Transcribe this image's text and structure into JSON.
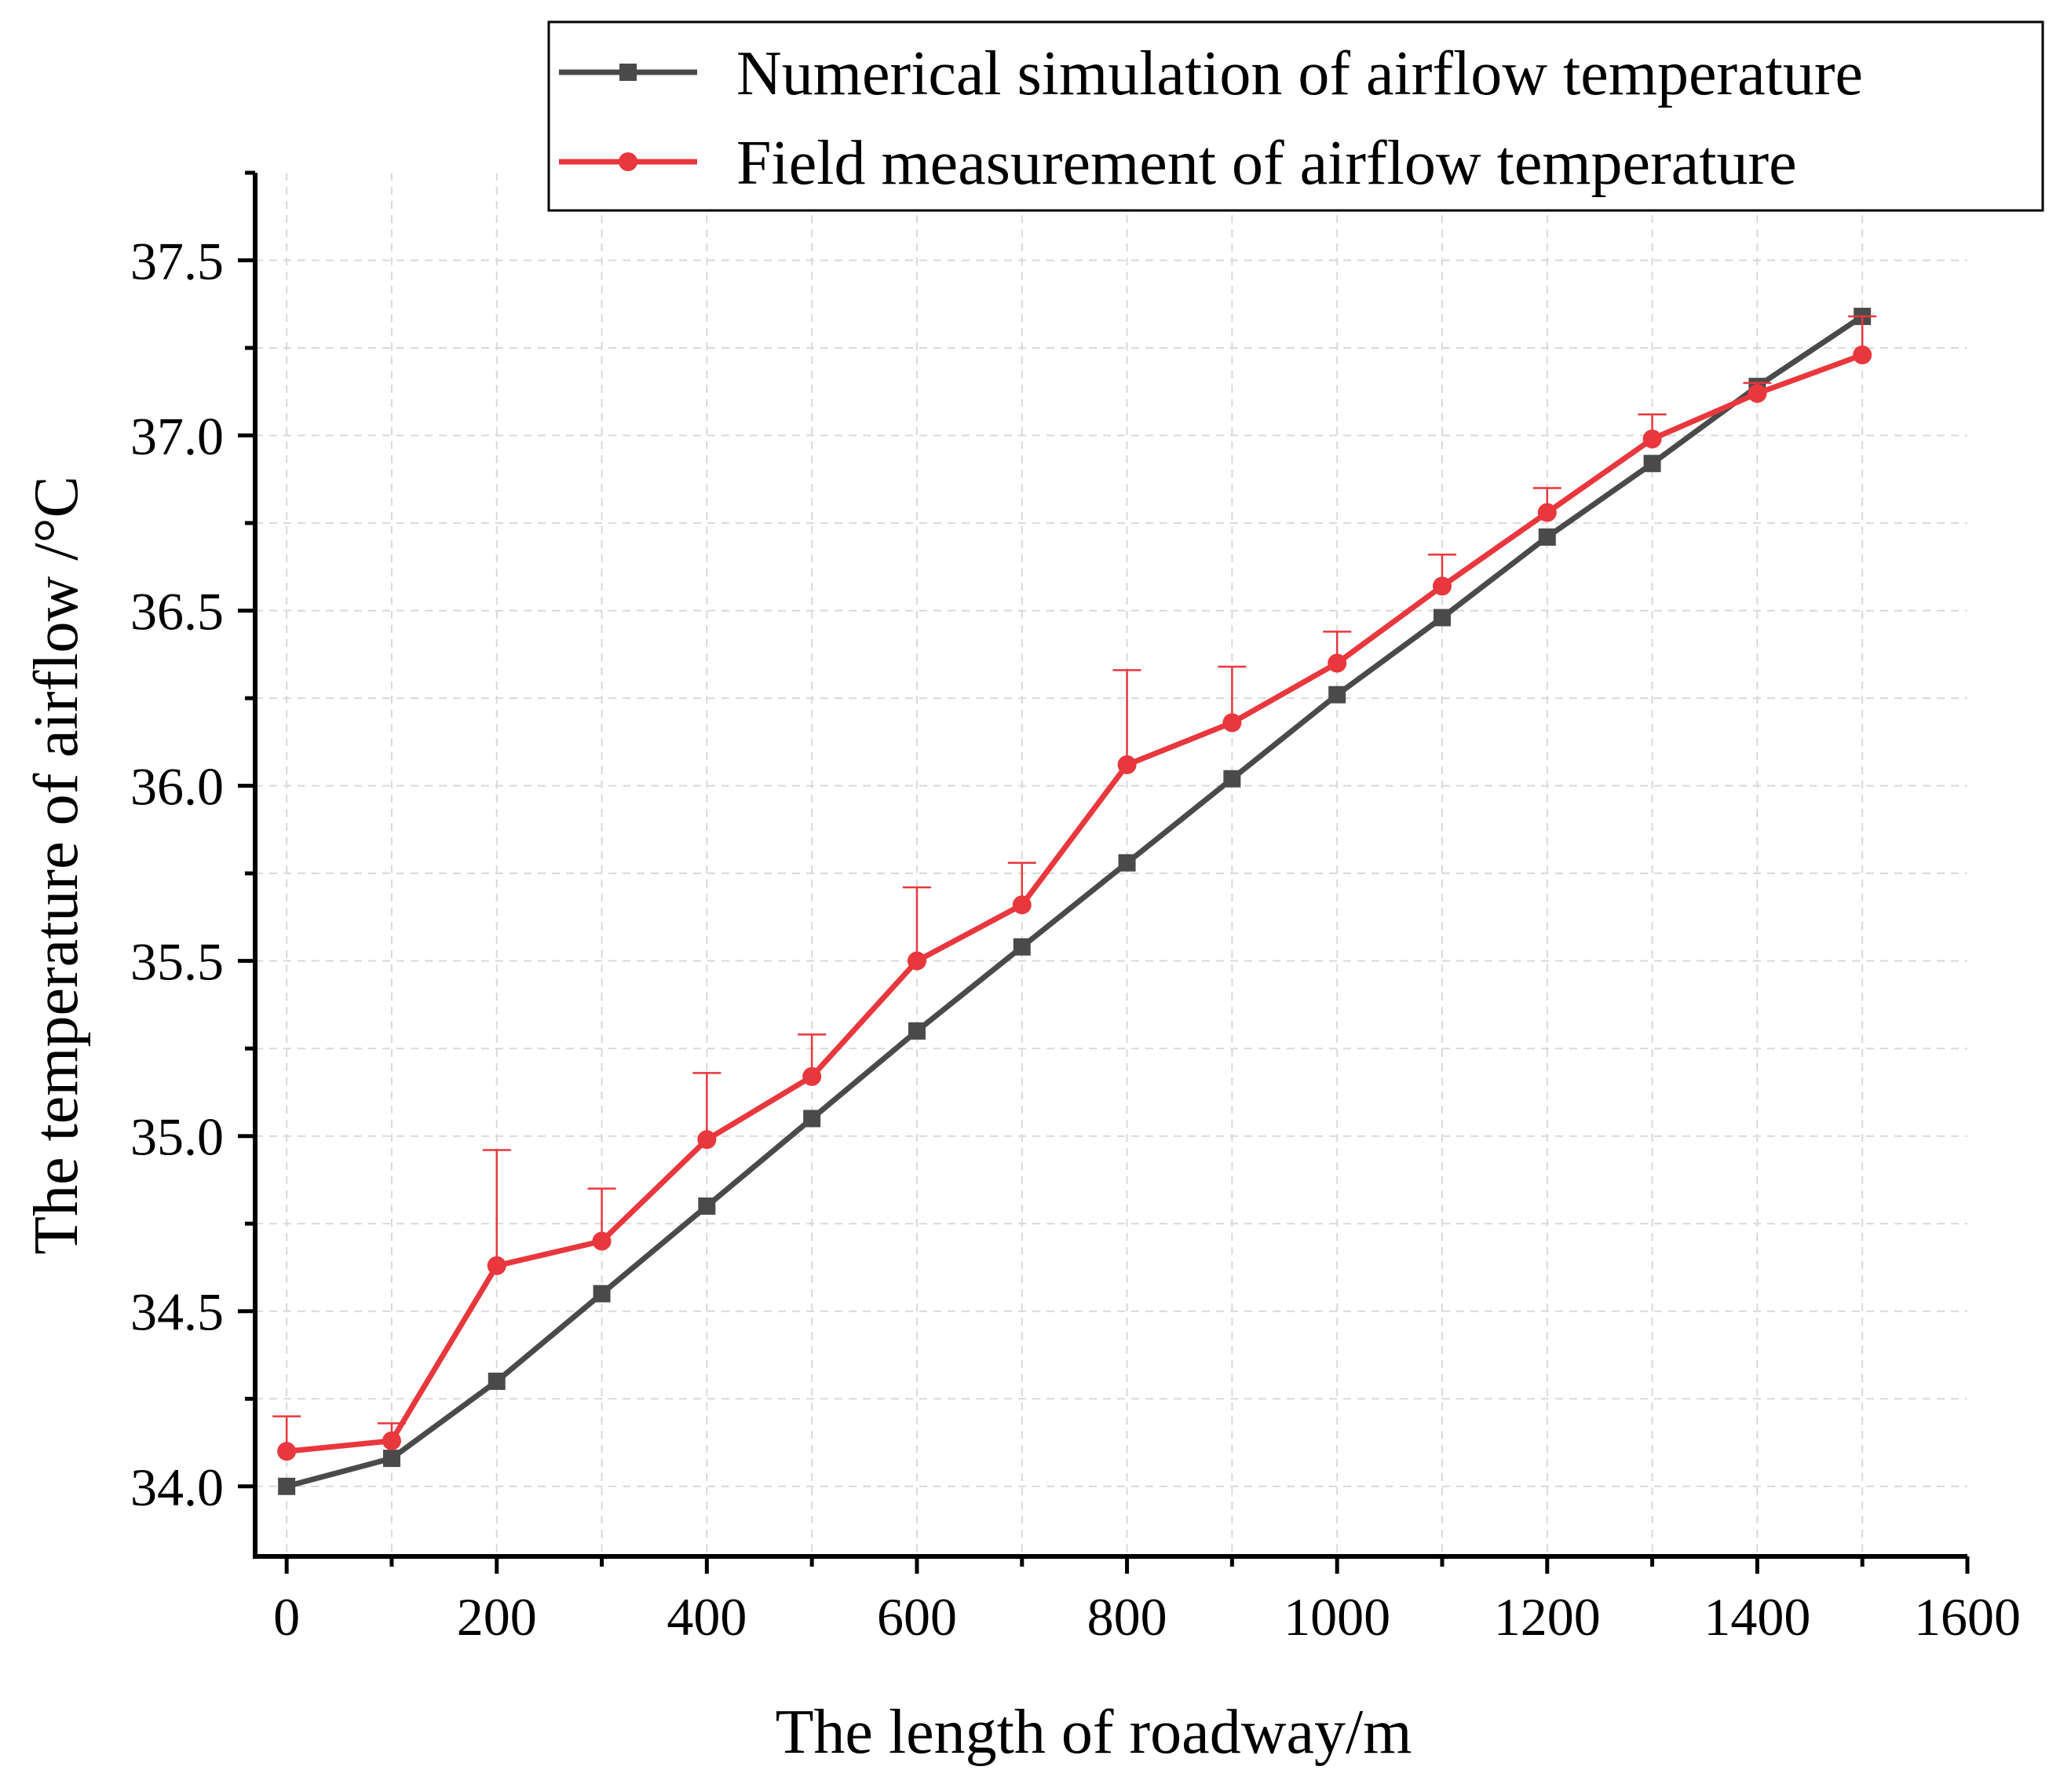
{
  "chart_data": {
    "type": "line",
    "title": "",
    "xlabel": "The length of roadway/m",
    "ylabel": "The temperature of airflow /°C",
    "xlim": [
      -30,
      1600
    ],
    "ylim": [
      33.8,
      37.75
    ],
    "x_ticks": [
      0,
      200,
      400,
      600,
      800,
      1000,
      1200,
      1400,
      1600
    ],
    "x_tick_labels": [
      "0",
      "200",
      "400",
      "600",
      "800",
      "1000",
      "1200",
      "1400",
      "1600"
    ],
    "x_minor_ticks": [
      100,
      300,
      500,
      700,
      900,
      1100,
      1300,
      1500
    ],
    "y_ticks": [
      34.0,
      34.5,
      35.0,
      35.5,
      36.0,
      36.5,
      37.0,
      37.5
    ],
    "y_tick_labels": [
      "34.0",
      "34.5",
      "35.0",
      "35.5",
      "36.0",
      "36.5",
      "37.0",
      "37.5"
    ],
    "y_minor_ticks": [
      34.25,
      34.75,
      35.25,
      35.75,
      36.25,
      36.75,
      37.25
    ],
    "grid": true,
    "legend_position": "top-right",
    "x": [
      0,
      100,
      200,
      300,
      400,
      500,
      600,
      700,
      800,
      900,
      1000,
      1100,
      1200,
      1300,
      1400,
      1500
    ],
    "series": [
      {
        "name": "Numerical simulation of airflow temperature",
        "color": "#4a4a4a",
        "marker": "square",
        "values": [
          34.0,
          34.08,
          34.3,
          34.55,
          34.8,
          35.05,
          35.3,
          35.54,
          35.78,
          36.02,
          36.26,
          36.48,
          36.71,
          36.92,
          37.14,
          37.34
        ],
        "error": [
          0,
          0,
          0,
          0,
          0,
          0,
          0,
          0,
          0,
          0,
          0,
          0,
          0,
          0,
          0,
          0
        ]
      },
      {
        "name": "Field measurement of airflow temperature",
        "color": "#e8373d",
        "marker": "circle",
        "values": [
          34.1,
          34.13,
          34.63,
          34.7,
          34.99,
          35.17,
          35.5,
          35.66,
          36.06,
          36.18,
          36.35,
          36.57,
          36.78,
          36.99,
          37.12,
          37.23
        ],
        "error": [
          0.1,
          0.05,
          0.33,
          0.15,
          0.19,
          0.12,
          0.21,
          0.12,
          0.27,
          0.16,
          0.09,
          0.09,
          0.07,
          0.07,
          0.03,
          0.11
        ]
      }
    ]
  },
  "colors": {
    "axis": "#000000",
    "grid": "#d9d9d9",
    "simulation": "#4a4a4a",
    "measurement": "#e8373d"
  }
}
